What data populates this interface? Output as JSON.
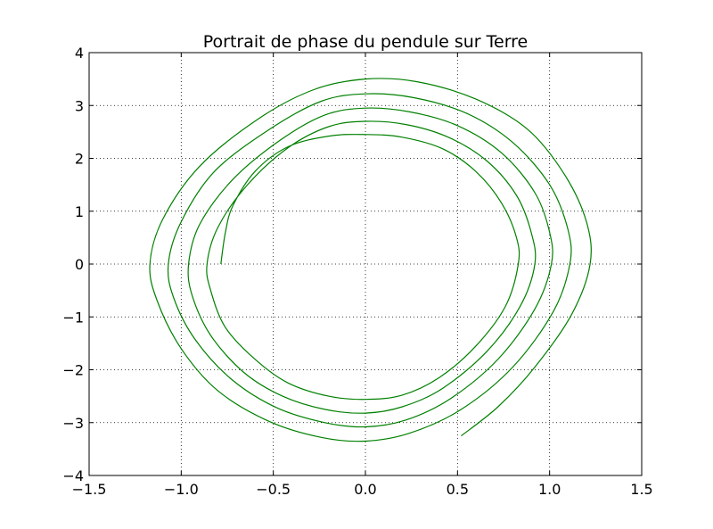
{
  "chart_data": {
    "type": "line",
    "title": "Portrait de phase du pendule sur Terre",
    "xlabel": "",
    "ylabel": "",
    "xlim": [
      -1.5,
      1.5
    ],
    "ylim": [
      -4,
      4
    ],
    "x_ticks": [
      -1.5,
      -1.0,
      -0.5,
      0.0,
      0.5,
      1.0,
      1.5
    ],
    "x_tick_labels": [
      "−1.5",
      "−1.0",
      "−0.5",
      "0.0",
      "0.5",
      "1.0",
      "1.5"
    ],
    "y_ticks": [
      -4,
      -3,
      -2,
      -1,
      0,
      1,
      2,
      3,
      4
    ],
    "y_tick_labels": [
      "−4",
      "−3",
      "−2",
      "−1",
      "0",
      "1",
      "2",
      "3",
      "4"
    ],
    "grid": true,
    "series": [
      {
        "color": "#008000",
        "x": [
          -0.785,
          -0.76,
          -0.72,
          -0.6,
          -0.42,
          -0.2,
          0.0,
          0.2,
          0.42,
          0.6,
          0.74,
          0.82,
          0.83,
          0.76,
          0.6,
          0.4,
          0.2,
          0.0,
          -0.2,
          -0.42,
          -0.6,
          -0.76,
          -0.84,
          -0.86,
          -0.8,
          -0.64,
          -0.42,
          -0.2,
          0.0,
          0.22,
          0.45,
          0.66,
          0.82,
          0.9,
          0.92,
          0.84,
          0.66,
          0.42,
          0.2,
          0.0,
          -0.22,
          -0.45,
          -0.66,
          -0.84,
          -0.94,
          -0.96,
          -0.9,
          -0.72,
          -0.46,
          -0.22,
          0.0,
          0.24,
          0.5,
          0.74,
          0.92,
          1.0,
          1.01,
          0.92,
          0.72,
          0.46,
          0.22,
          0.0,
          -0.22,
          -0.48,
          -0.72,
          -0.92,
          -1.04,
          -1.07,
          -1.0,
          -0.82,
          -0.52,
          -0.24,
          0.0,
          0.26,
          0.55,
          0.8,
          1.0,
          1.1,
          1.11,
          1.02,
          0.8,
          0.52,
          0.24,
          0.0,
          -0.24,
          -0.52,
          -0.8,
          -1.0,
          -1.13,
          -1.17,
          -1.1,
          -0.9,
          -0.58,
          -0.28,
          0.0,
          0.28,
          0.6,
          0.88,
          1.08,
          1.2,
          1.22,
          1.12,
          0.92,
          0.72,
          0.52
        ],
        "y": [
          0.0,
          0.6,
          1.1,
          1.75,
          2.22,
          2.42,
          2.45,
          2.4,
          2.18,
          1.75,
          1.15,
          0.5,
          0.0,
          -0.8,
          -1.55,
          -2.15,
          -2.48,
          -2.56,
          -2.5,
          -2.25,
          -1.8,
          -1.2,
          -0.5,
          0.0,
          0.7,
          1.5,
          2.2,
          2.6,
          2.7,
          2.64,
          2.4,
          1.95,
          1.3,
          0.6,
          0.0,
          -0.8,
          -1.65,
          -2.35,
          -2.7,
          -2.82,
          -2.75,
          -2.5,
          -2.05,
          -1.35,
          -0.6,
          0.0,
          0.75,
          1.6,
          2.35,
          2.82,
          2.95,
          2.88,
          2.62,
          2.1,
          1.35,
          0.6,
          0.0,
          -0.85,
          -1.8,
          -2.55,
          -2.95,
          -3.08,
          -3.0,
          -2.72,
          -2.2,
          -1.45,
          -0.65,
          0.0,
          0.8,
          1.75,
          2.55,
          3.08,
          3.22,
          3.15,
          2.85,
          2.3,
          1.5,
          0.65,
          0.0,
          -0.9,
          -1.95,
          -2.75,
          -3.2,
          -3.35,
          -3.28,
          -2.98,
          -2.4,
          -1.6,
          -0.7,
          0.0,
          0.85,
          1.85,
          2.75,
          3.3,
          3.5,
          3.45,
          3.12,
          2.55,
          1.7,
          0.8,
          0.0,
          -0.95,
          -1.95,
          -2.7,
          -3.25
        ]
      }
    ]
  }
}
